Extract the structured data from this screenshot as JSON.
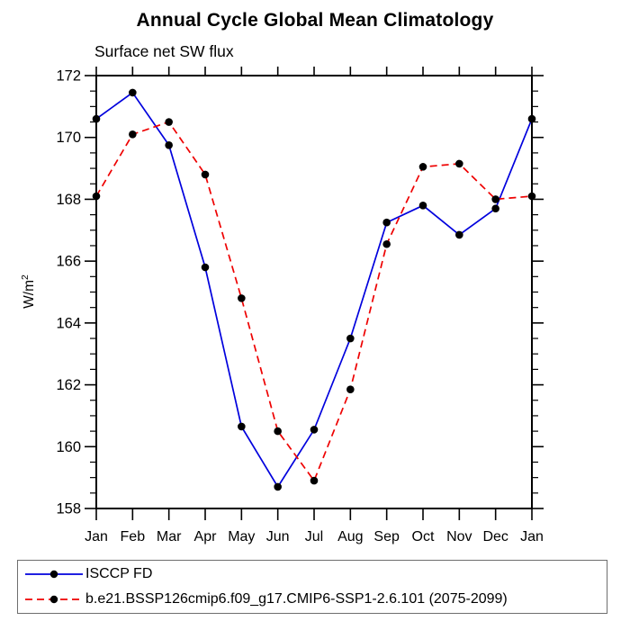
{
  "header": {
    "title": "Annual Cycle Global Mean Climatology",
    "subtitle": "Surface net SW flux"
  },
  "chart_data": {
    "type": "line",
    "title": "Annual Cycle Global Mean Climatology",
    "subtitle": "Surface net SW flux",
    "ylabel_base": "W/m",
    "ylabel_sup": "2",
    "categories": [
      "Jan",
      "Feb",
      "Mar",
      "Apr",
      "May",
      "Jun",
      "Jul",
      "Aug",
      "Sep",
      "Oct",
      "Nov",
      "Dec",
      "Jan"
    ],
    "series": [
      {
        "name": "ISCCP FD",
        "color": "#0000dd",
        "line_style": "solid",
        "marker": "filled-circle",
        "marker_color": "#000000",
        "values": [
          170.6,
          171.45,
          169.75,
          165.8,
          160.65,
          158.7,
          160.55,
          163.5,
          167.25,
          167.8,
          166.85,
          167.7,
          170.6
        ]
      },
      {
        "name": "b.e21.BSSP126cmip6.f09_g17.CMIP6-SSP1-2.6.101 (2075-2099)",
        "color": "#ee0000",
        "line_style": "dashed",
        "marker": "filled-circle",
        "marker_color": "#000000",
        "values": [
          168.1,
          170.1,
          170.5,
          168.8,
          164.8,
          160.5,
          158.9,
          161.85,
          166.55,
          169.05,
          169.15,
          168.0,
          168.1
        ]
      }
    ],
    "ylim": [
      158,
      172
    ],
    "ytick_step": 2,
    "yminor_step": 0.5,
    "ytick_labels": [
      "158",
      "160",
      "162",
      "164",
      "166",
      "168",
      "170",
      "172"
    ],
    "grid": false,
    "legend_position": "bottom-left-box",
    "frame_color": "#000000"
  }
}
